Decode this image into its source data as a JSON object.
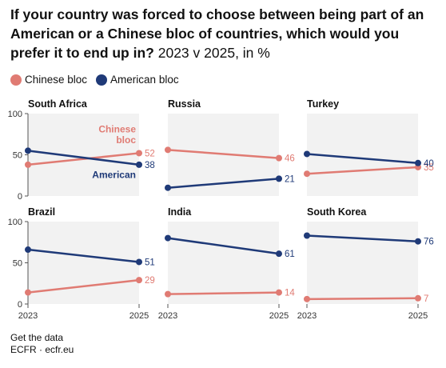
{
  "title": {
    "main": "If your country was forced to choose between being part of an American or a Chinese bloc of countries, which would you prefer it to end up in?",
    "sub": "2023 v 2025, in %"
  },
  "legend": [
    {
      "label": "Chinese bloc",
      "color": "#e07b73"
    },
    {
      "label": "American bloc",
      "color": "#1f3a78"
    }
  ],
  "footer": {
    "link": "Get the data",
    "source": "ECFR · ecfr.eu"
  },
  "chart_data": {
    "type": "line",
    "x": [
      "2023",
      "2025"
    ],
    "ylim": [
      0,
      100
    ],
    "yticks": [
      0,
      50,
      100
    ],
    "grid": false,
    "legend_position": "top-left",
    "series_colors": {
      "Chinese bloc": "#e07b73",
      "American bloc": "#1f3a78"
    },
    "inline_labels": {
      "chinese": [
        "Chinese",
        "bloc"
      ],
      "american": "American"
    },
    "panels": [
      {
        "name": "South Africa",
        "series": [
          {
            "name": "Chinese bloc",
            "values": [
              38,
              52
            ]
          },
          {
            "name": "American bloc",
            "values": [
              55,
              38
            ]
          }
        ]
      },
      {
        "name": "Russia",
        "series": [
          {
            "name": "Chinese bloc",
            "values": [
              56,
              46
            ]
          },
          {
            "name": "American bloc",
            "values": [
              10,
              21
            ]
          }
        ]
      },
      {
        "name": "Turkey",
        "series": [
          {
            "name": "Chinese bloc",
            "values": [
              27,
              35
            ]
          },
          {
            "name": "American bloc",
            "values": [
              51,
              40
            ]
          }
        ]
      },
      {
        "name": "Brazil",
        "series": [
          {
            "name": "Chinese bloc",
            "values": [
              14,
              29
            ]
          },
          {
            "name": "American bloc",
            "values": [
              66,
              51
            ]
          }
        ]
      },
      {
        "name": "India",
        "series": [
          {
            "name": "Chinese bloc",
            "values": [
              12,
              14
            ]
          },
          {
            "name": "American bloc",
            "values": [
              80,
              61
            ]
          }
        ]
      },
      {
        "name": "South Korea",
        "series": [
          {
            "name": "Chinese bloc",
            "values": [
              6,
              7
            ]
          },
          {
            "name": "American bloc",
            "values": [
              83,
              76
            ]
          }
        ]
      }
    ]
  }
}
